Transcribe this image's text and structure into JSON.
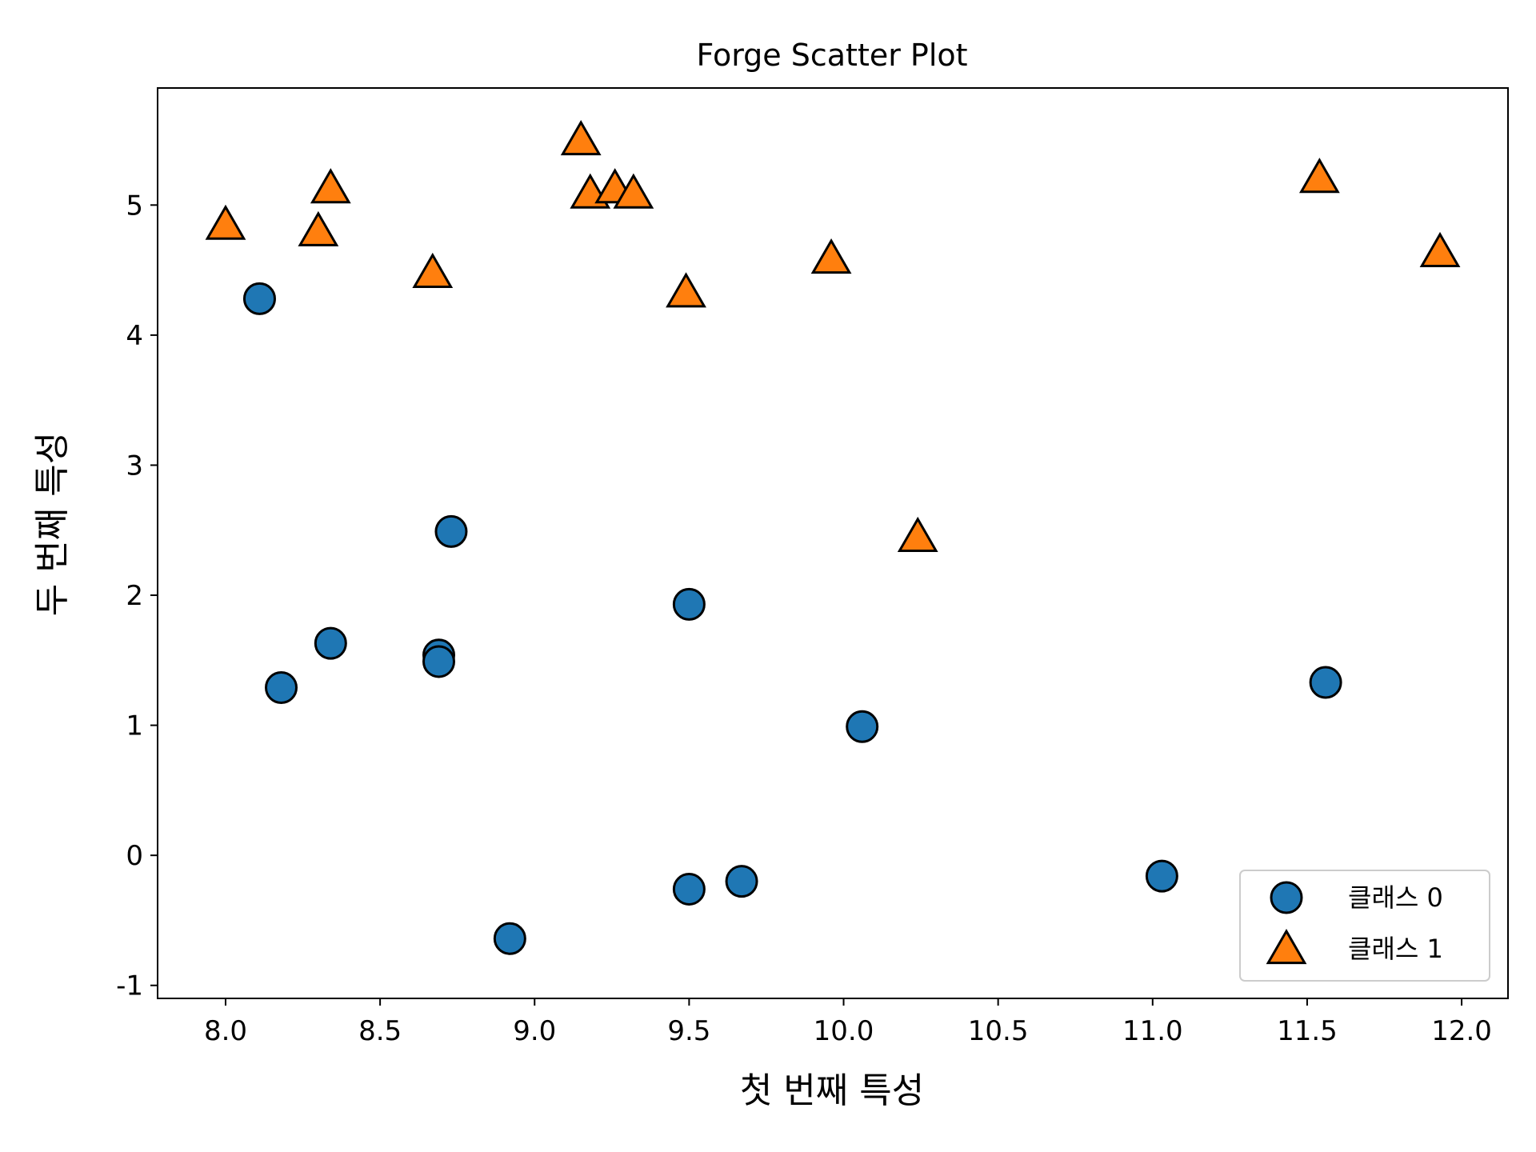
{
  "chart_data": {
    "type": "scatter",
    "title": "Forge Scatter Plot",
    "xlabel": "첫 번째 특성",
    "ylabel": "두 번째 특성",
    "xlim": [
      7.78,
      12.15
    ],
    "ylim": [
      -1.1,
      5.9
    ],
    "xticks": [
      8.0,
      8.5,
      9.0,
      9.5,
      10.0,
      10.5,
      11.0,
      11.5,
      12.0
    ],
    "xtick_labels": [
      "8.0",
      "8.5",
      "9.0",
      "9.5",
      "10.0",
      "10.5",
      "11.0",
      "11.5",
      "12.0"
    ],
    "yticks": [
      -1,
      0,
      1,
      2,
      3,
      4,
      5
    ],
    "ytick_labels": [
      "-1",
      "0",
      "1",
      "2",
      "3",
      "4",
      "5"
    ],
    "grid": false,
    "legend_position": "lower-right",
    "series": [
      {
        "name": "클래스 0",
        "marker": "circle",
        "color": "#1f77b4",
        "points": [
          [
            8.11,
            4.28
          ],
          [
            8.18,
            1.29
          ],
          [
            8.34,
            1.63
          ],
          [
            8.69,
            1.54
          ],
          [
            8.69,
            1.49
          ],
          [
            8.73,
            2.49
          ],
          [
            8.92,
            -0.64
          ],
          [
            9.5,
            1.93
          ],
          [
            9.5,
            -0.26
          ],
          [
            9.67,
            -0.2
          ],
          [
            10.06,
            0.99
          ],
          [
            11.03,
            -0.16
          ],
          [
            11.56,
            1.33
          ]
        ]
      },
      {
        "name": "클래스 1",
        "marker": "triangle",
        "color": "#ff7f0e",
        "points": [
          [
            8.0,
            4.85
          ],
          [
            8.3,
            4.8
          ],
          [
            8.34,
            5.13
          ],
          [
            8.67,
            4.48
          ],
          [
            9.15,
            5.5
          ],
          [
            9.18,
            5.09
          ],
          [
            9.26,
            5.13
          ],
          [
            9.32,
            5.09
          ],
          [
            9.49,
            4.33
          ],
          [
            9.96,
            4.59
          ],
          [
            10.24,
            2.45
          ],
          [
            11.54,
            5.21
          ],
          [
            11.93,
            4.64
          ]
        ]
      }
    ]
  }
}
